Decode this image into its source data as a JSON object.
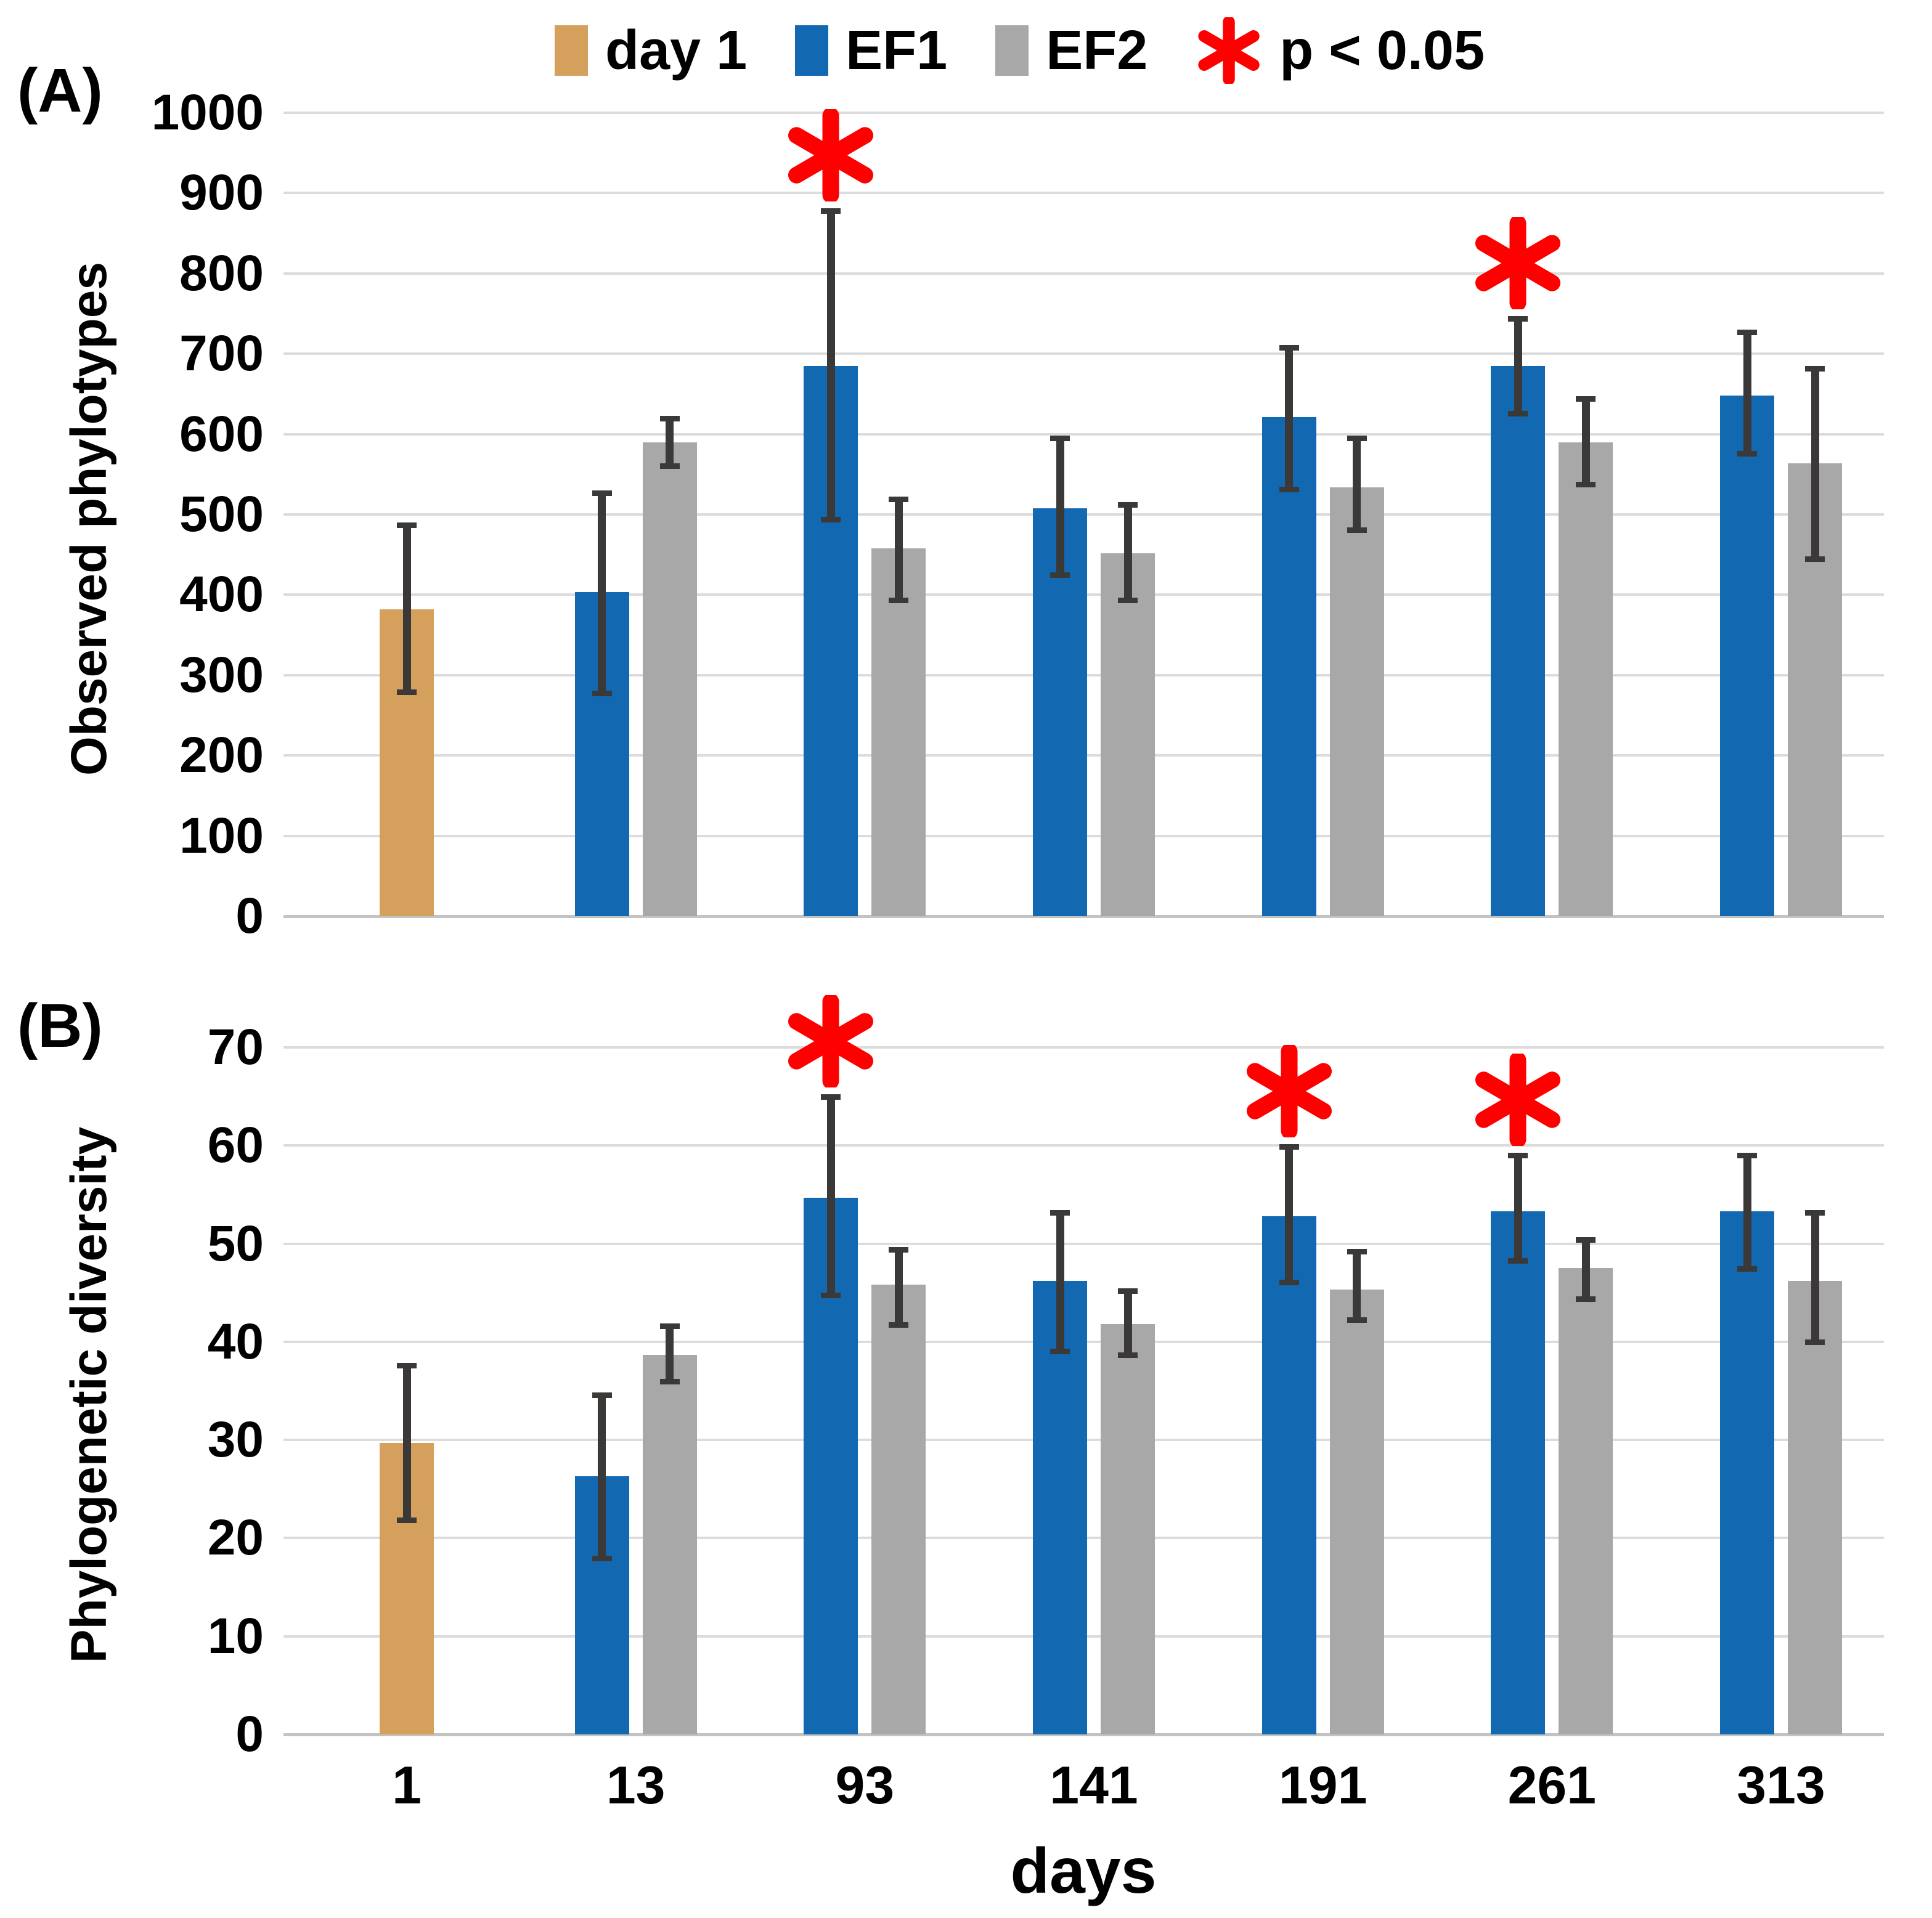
{
  "legend": {
    "items": [
      {
        "label": "day 1",
        "color": "#D5A05C",
        "type": "swatch"
      },
      {
        "label": "EF1",
        "color": "#1269B2",
        "type": "swatch"
      },
      {
        "label": "EF2",
        "color": "#A8A8A8",
        "type": "swatch"
      },
      {
        "label": "p < 0.05",
        "color": "#FF0000",
        "type": "asterisk"
      }
    ]
  },
  "xlabel": "days",
  "colors": {
    "day1": "#D5A05C",
    "ef1": "#1269B2",
    "ef2": "#A8A8A8",
    "error_bar": "#3B3838",
    "gridline": "#DCDCDC",
    "significance": "#FF0000"
  },
  "chart_data": [
    {
      "type": "bar",
      "panel_label": "(A)",
      "ylabel": "Observed phylotypes",
      "xlabel": "days",
      "ylim": [
        0,
        1000
      ],
      "yticks": [
        0,
        100,
        200,
        300,
        400,
        500,
        600,
        700,
        800,
        900,
        1000
      ],
      "grid": true,
      "legend_position": "top",
      "categories": [
        "1",
        "13",
        "93",
        "141",
        "191",
        "261",
        "313"
      ],
      "series": [
        {
          "name": "day 1",
          "color": "#D5A05C",
          "values": [
            382,
            null,
            null,
            null,
            null,
            null,
            null
          ],
          "err_lo": [
            278,
            null,
            null,
            null,
            null,
            null,
            null
          ],
          "err_hi": [
            487,
            null,
            null,
            null,
            null,
            null,
            null
          ],
          "sig": [
            false,
            false,
            false,
            false,
            false,
            false,
            false
          ]
        },
        {
          "name": "EF1",
          "color": "#1269B2",
          "values": [
            null,
            403,
            685,
            508,
            621,
            685,
            648
          ],
          "err_lo": [
            null,
            277,
            493,
            424,
            531,
            625,
            575
          ],
          "err_hi": [
            null,
            527,
            878,
            595,
            708,
            744,
            727
          ],
          "sig": [
            false,
            false,
            true,
            false,
            false,
            true,
            false
          ]
        },
        {
          "name": "EF2",
          "color": "#A8A8A8",
          "values": [
            null,
            590,
            458,
            452,
            534,
            590,
            564
          ],
          "err_lo": [
            null,
            560,
            393,
            393,
            480,
            537,
            444
          ],
          "err_hi": [
            null,
            620,
            519,
            512,
            595,
            644,
            682
          ],
          "sig": [
            false,
            false,
            false,
            false,
            false,
            false,
            false
          ]
        }
      ]
    },
    {
      "type": "bar",
      "panel_label": "(B)",
      "ylabel": "Phylogenetic diversity",
      "xlabel": "days",
      "ylim": [
        0,
        70
      ],
      "yticks": [
        0,
        10,
        20,
        30,
        40,
        50,
        60,
        70
      ],
      "grid": true,
      "legend_position": "top",
      "categories": [
        "1",
        "13",
        "93",
        "141",
        "191",
        "261",
        "313"
      ],
      "series": [
        {
          "name": "day 1",
          "color": "#D5A05C",
          "values": [
            29.7,
            null,
            null,
            null,
            null,
            null,
            null
          ],
          "err_lo": [
            21.8,
            null,
            null,
            null,
            null,
            null,
            null
          ],
          "err_hi": [
            37.6,
            null,
            null,
            null,
            null,
            null,
            null
          ],
          "sig": [
            false,
            false,
            false,
            false,
            false,
            false,
            false
          ]
        },
        {
          "name": "EF1",
          "color": "#1269B2",
          "values": [
            null,
            26.3,
            54.7,
            46.2,
            52.8,
            53.3,
            53.3
          ],
          "err_lo": [
            null,
            17.9,
            44.7,
            39.0,
            46.0,
            48.2,
            47.4
          ],
          "err_hi": [
            null,
            34.6,
            65.0,
            53.2,
            59.9,
            59.0,
            59.0
          ],
          "sig": [
            false,
            false,
            true,
            false,
            true,
            true,
            false
          ]
        },
        {
          "name": "EF2",
          "color": "#A8A8A8",
          "values": [
            null,
            38.7,
            45.8,
            41.8,
            45.3,
            47.5,
            46.2
          ],
          "err_lo": [
            null,
            35.9,
            41.7,
            38.6,
            42.2,
            44.3,
            39.9
          ],
          "err_hi": [
            null,
            41.6,
            49.4,
            45.2,
            49.2,
            50.4,
            53.2
          ],
          "sig": [
            false,
            false,
            false,
            false,
            false,
            false,
            false
          ]
        }
      ]
    }
  ]
}
